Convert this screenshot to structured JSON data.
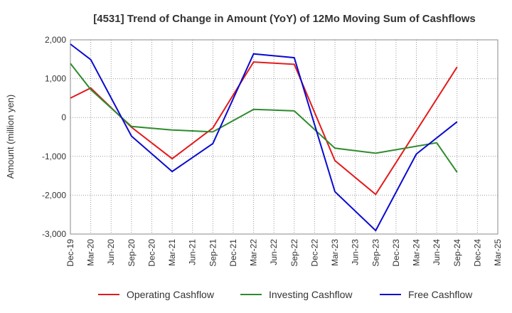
{
  "chart_data": {
    "type": "line",
    "title": "[4531]  Trend of Change in Amount (YoY) of 12Mo Moving Sum of Cashflows",
    "xlabel": "",
    "ylabel": "Amount (million yen)",
    "ylim": [
      -3000,
      2000
    ],
    "yticks": [
      2000,
      1000,
      0,
      -1000,
      -2000,
      -3000
    ],
    "ytick_labels": [
      "2,000",
      "1,000",
      "0",
      "-1,000",
      "-2,000",
      "-3,000"
    ],
    "categories": [
      "Dec-19",
      "Mar-20",
      "Jun-20",
      "Sep-20",
      "Dec-20",
      "Mar-21",
      "Jun-21",
      "Sep-21",
      "Dec-21",
      "Mar-22",
      "Jun-22",
      "Sep-22",
      "Dec-22",
      "Mar-23",
      "Jun-23",
      "Sep-23",
      "Dec-23",
      "Mar-24",
      "Jun-24",
      "Sep-24",
      "Dec-24",
      "Mar-25"
    ],
    "grid": true,
    "legend_position": "bottom",
    "series": [
      {
        "name": "Operating Cashflow",
        "color": "#e31a1c",
        "values": [
          500,
          760,
          null,
          -250,
          null,
          -1060,
          null,
          -270,
          null,
          1430,
          null,
          1370,
          null,
          -1110,
          null,
          -1980,
          null,
          null,
          null,
          1300,
          null,
          null
        ]
      },
      {
        "name": "Investing Cashflow",
        "color": "#2e8b2e",
        "values": [
          1390,
          720,
          null,
          -230,
          null,
          -320,
          null,
          -370,
          null,
          210,
          null,
          170,
          null,
          -790,
          null,
          -920,
          null,
          null,
          -650,
          -1410,
          null,
          null
        ]
      },
      {
        "name": "Free Cashflow",
        "color": "#0a0ad0",
        "values": [
          1890,
          1490,
          null,
          -480,
          null,
          -1390,
          null,
          -670,
          null,
          1640,
          null,
          1540,
          null,
          -1910,
          null,
          -2910,
          null,
          -940,
          null,
          -110,
          null,
          null
        ]
      }
    ]
  }
}
